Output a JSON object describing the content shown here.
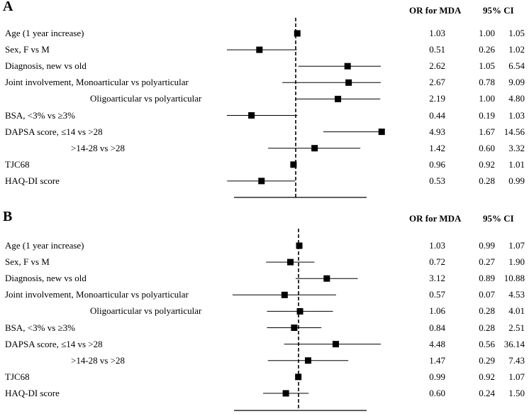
{
  "chart_data": [
    {
      "type": "forest",
      "panel": "A",
      "header_or": "OR for MDA",
      "header_ci": "95% CI",
      "reference_value": 1.0,
      "rows": [
        {
          "label": "Age (1 year increase)",
          "or": "1.03",
          "lo": "1.00",
          "hi": "1.05",
          "or_v": 1.03,
          "lo_v": 1.0,
          "hi_v": 1.05
        },
        {
          "label": "Sex, F vs M",
          "or": "0.51",
          "lo": "0.26",
          "hi": "1.02",
          "or_v": 0.51,
          "lo_v": 0.26,
          "hi_v": 1.02
        },
        {
          "label": "Diagnosis, new vs old",
          "or": "2.62",
          "lo": "1.05",
          "hi": "6.54",
          "or_v": 2.62,
          "lo_v": 1.05,
          "hi_v": 6.54
        },
        {
          "label": "Joint involvement, Monoarticular vs polyarticular",
          "or": "2.67",
          "lo": "0.78",
          "hi": "9.09",
          "or_v": 2.67,
          "lo_v": 0.78,
          "hi_v": 9.09
        },
        {
          "label": "Oligoarticular vs polyarticular",
          "or": "2.19",
          "lo": "1.00",
          "hi": "4.80",
          "or_v": 2.19,
          "lo_v": 1.0,
          "hi_v": 4.8
        },
        {
          "label": "BSA, <3% vs ≥3%",
          "or": "0.44",
          "lo": "0.19",
          "hi": "1.03",
          "or_v": 0.44,
          "lo_v": 0.19,
          "hi_v": 1.03
        },
        {
          "label": "DAPSA score, ≤14 vs >28",
          "or": "4.93",
          "lo": "1.67",
          "hi": "14.56",
          "or_v": 4.93,
          "lo_v": 1.67,
          "hi_v": 14.56
        },
        {
          "label": ">14-28 vs >28",
          "or": "1.42",
          "lo": "0.60",
          "hi": "3.32",
          "or_v": 1.42,
          "lo_v": 0.6,
          "hi_v": 3.32
        },
        {
          "label": "TJC68",
          "or": "0.96",
          "lo": "0.92",
          "hi": "1.01",
          "or_v": 0.96,
          "lo_v": 0.92,
          "hi_v": 1.01
        },
        {
          "label": "HAQ-DI score",
          "or": "0.53",
          "lo": "0.28",
          "hi": "0.99",
          "or_v": 0.53,
          "lo_v": 0.28,
          "hi_v": 0.99
        }
      ]
    },
    {
      "type": "forest",
      "panel": "B",
      "header_or": "OR for MDA",
      "header_ci": "95% CI",
      "reference_value": 1.0,
      "rows": [
        {
          "label": "Age (1 year increase)",
          "or": "1.03",
          "lo": "0.99",
          "hi": "1.07",
          "or_v": 1.03,
          "lo_v": 0.99,
          "hi_v": 1.07
        },
        {
          "label": "Sex, F vs M",
          "or": "0.72",
          "lo": "0.27",
          "hi": "1.90",
          "or_v": 0.72,
          "lo_v": 0.27,
          "hi_v": 1.9
        },
        {
          "label": "Diagnosis, new vs old",
          "or": "3.12",
          "lo": "0.89",
          "hi": "10.88",
          "or_v": 3.12,
          "lo_v": 0.89,
          "hi_v": 10.88
        },
        {
          "label": "Joint involvement, Monoarticular vs polyarticular",
          "or": "0.57",
          "lo": "0.07",
          "hi": "4.53",
          "or_v": 0.57,
          "lo_v": 0.07,
          "hi_v": 4.53
        },
        {
          "label": "Oligoarticular vs polyarticular",
          "or": "1.06",
          "lo": "0.28",
          "hi": "4.01",
          "or_v": 1.06,
          "lo_v": 0.28,
          "hi_v": 4.01
        },
        {
          "label": "BSA, <3% vs ≥3%",
          "or": "0.84",
          "lo": "0.28",
          "hi": "2.51",
          "or_v": 0.84,
          "lo_v": 0.28,
          "hi_v": 2.51
        },
        {
          "label": "DAPSA score, ≤14 vs >28",
          "or": "4.48",
          "lo": "0.56",
          "hi": "36.14",
          "or_v": 4.48,
          "lo_v": 0.56,
          "hi_v": 36.14
        },
        {
          "label": ">14-28 vs >28",
          "or": "1.47",
          "lo": "0.29",
          "hi": "7.43",
          "or_v": 1.47,
          "lo_v": 0.29,
          "hi_v": 7.43
        },
        {
          "label": "TJC68",
          "or": "0.99",
          "lo": "0.92",
          "hi": "1.07",
          "or_v": 0.99,
          "lo_v": 0.92,
          "hi_v": 1.07
        },
        {
          "label": "HAQ-DI score",
          "or": "0.60",
          "lo": "0.24",
          "hi": "1.50",
          "or_v": 0.6,
          "lo_v": 0.24,
          "hi_v": 1.5
        }
      ]
    }
  ]
}
